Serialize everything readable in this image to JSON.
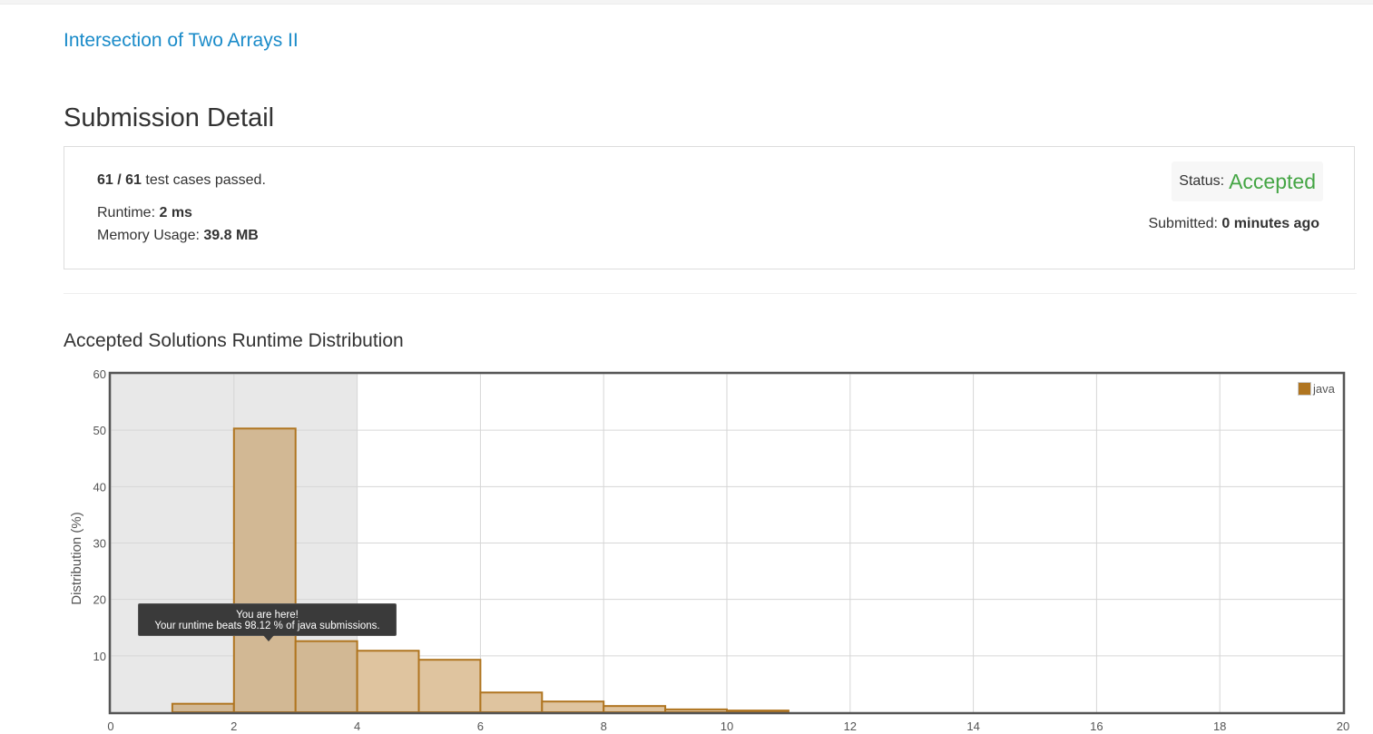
{
  "problem": {
    "title": "Intersection of Two Arrays II"
  },
  "page": {
    "title": "Submission Detail"
  },
  "detail": {
    "passed": "61",
    "separator": " / ",
    "total": "61",
    "passed_suffix": " test cases passed.",
    "runtime_label": "Runtime: ",
    "runtime_value": "2 ms",
    "memory_label": "Memory Usage: ",
    "memory_value": "39.8 MB",
    "status_label": "Status:",
    "status_value": "Accepted",
    "submitted_label": "Submitted: ",
    "submitted_value": "0 minutes ago"
  },
  "colors": {
    "link": "#1a8bc9",
    "accepted": "#44a544",
    "bar_fill": "#dfc49f",
    "bar_highlight": "#d2b894",
    "bar_stroke": "#b07520"
  },
  "chart_data": {
    "type": "bar",
    "title": "Accepted Solutions Runtime Distribution",
    "xlabel": "",
    "ylabel": "Distribution (%)",
    "xlim": [
      0,
      20
    ],
    "ylim": [
      0,
      60
    ],
    "xticks": [
      0,
      2,
      4,
      6,
      8,
      10,
      12,
      14,
      16,
      18,
      20
    ],
    "yticks": [
      10,
      20,
      30,
      40,
      50,
      60
    ],
    "grid": true,
    "legend": {
      "position": "top-right",
      "entries": [
        "java"
      ]
    },
    "highlight_range": [
      0,
      4
    ],
    "series": [
      {
        "name": "java",
        "bins": [
          {
            "x0": 1,
            "x1": 2,
            "value": 1.5
          },
          {
            "x0": 2,
            "x1": 3,
            "value": 50.3
          },
          {
            "x0": 3,
            "x1": 4,
            "value": 12.6
          },
          {
            "x0": 4,
            "x1": 5,
            "value": 10.9
          },
          {
            "x0": 5,
            "x1": 6,
            "value": 9.3
          },
          {
            "x0": 6,
            "x1": 7,
            "value": 3.5
          },
          {
            "x0": 7,
            "x1": 8,
            "value": 1.9
          },
          {
            "x0": 8,
            "x1": 9,
            "value": 1.1
          },
          {
            "x0": 9,
            "x1": 10,
            "value": 0.5
          },
          {
            "x0": 10,
            "x1": 11,
            "value": 0.3
          }
        ]
      }
    ],
    "annotation": {
      "line1": "You are here!",
      "line2": "Your runtime beats 98.12 % of java submissions."
    }
  }
}
